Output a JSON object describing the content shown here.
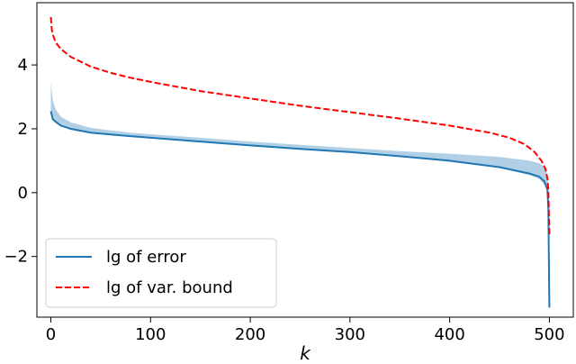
{
  "chart_data": {
    "type": "line",
    "title": "",
    "xlabel": "k",
    "ylabel": "",
    "xlim": [
      -14,
      524
    ],
    "ylim": [
      -3.9,
      5.95
    ],
    "xticks": [
      0,
      100,
      200,
      300,
      400,
      500
    ],
    "xtick_labels": [
      "0",
      "100",
      "200",
      "300",
      "400",
      "500"
    ],
    "yticks": [
      -2,
      0,
      2,
      4
    ],
    "ytick_labels": [
      "−2",
      "0",
      "2",
      "4"
    ],
    "grid": false,
    "legend_position": "lower-left",
    "series": [
      {
        "name": "lg of error",
        "style": "solid",
        "color": "#1f77b4",
        "x": [
          0,
          2,
          5,
          10,
          20,
          40,
          60,
          80,
          100,
          150,
          200,
          250,
          300,
          350,
          400,
          450,
          480,
          490,
          495,
          498,
          499,
          500
        ],
        "y": [
          2.55,
          2.3,
          2.22,
          2.1,
          2.0,
          1.88,
          1.82,
          1.77,
          1.72,
          1.6,
          1.48,
          1.37,
          1.27,
          1.14,
          1.0,
          0.8,
          0.6,
          0.5,
          0.35,
          0.1,
          -0.5,
          -3.6
        ]
      },
      {
        "name": "lg of var. bound",
        "style": "dashed",
        "color": "#ff0000",
        "x": [
          0,
          1,
          2,
          5,
          10,
          20,
          40,
          60,
          80,
          100,
          150,
          200,
          250,
          300,
          350,
          400,
          440,
          460,
          475,
          485,
          492,
          496,
          498,
          499,
          500
        ],
        "y": [
          5.5,
          5.1,
          4.95,
          4.7,
          4.5,
          4.25,
          3.95,
          3.75,
          3.6,
          3.47,
          3.18,
          2.95,
          2.72,
          2.52,
          2.32,
          2.1,
          1.88,
          1.72,
          1.52,
          1.28,
          1.0,
          0.75,
          0.45,
          0.05,
          -1.3
        ]
      }
    ],
    "band": {
      "color": "#1f77b4",
      "opacity": 0.35,
      "x": [
        0,
        2,
        5,
        10,
        20,
        40,
        60,
        80,
        100,
        150,
        200,
        250,
        300,
        350,
        400,
        450,
        480,
        490,
        495,
        498,
        499,
        500
      ],
      "lower": [
        2.45,
        2.25,
        2.17,
        2.08,
        1.97,
        1.86,
        1.8,
        1.75,
        1.7,
        1.58,
        1.46,
        1.35,
        1.25,
        1.12,
        0.97,
        0.77,
        0.55,
        0.42,
        0.25,
        0.0,
        -0.6,
        -3.6
      ],
      "upper": [
        3.45,
        2.9,
        2.6,
        2.38,
        2.2,
        2.03,
        1.95,
        1.88,
        1.83,
        1.72,
        1.6,
        1.5,
        1.4,
        1.3,
        1.22,
        1.12,
        1.0,
        0.92,
        0.8,
        0.55,
        0.2,
        -3.0
      ]
    }
  }
}
